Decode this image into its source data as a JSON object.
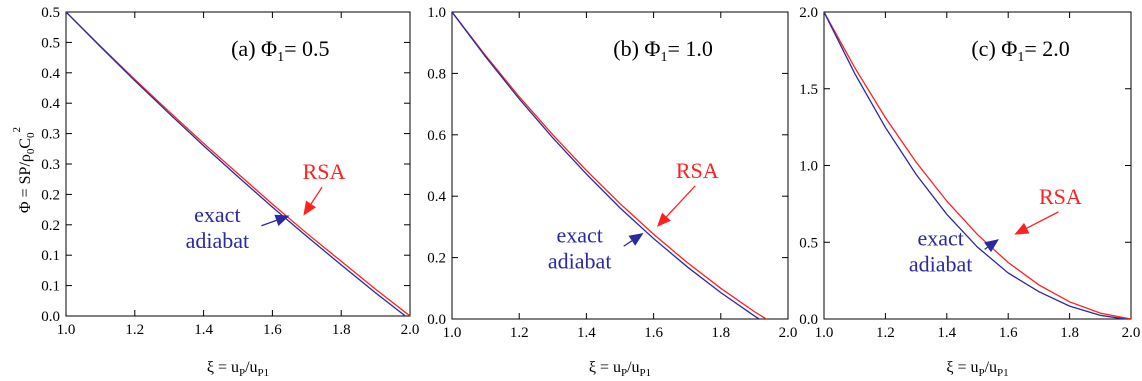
{
  "figure": {
    "ylabel": {
      "base": "Φ = SP/ρ",
      "sub1": "0",
      "mid": "C",
      "sub2": "0",
      "sup": "2"
    },
    "xlabel": {
      "base": "ξ = u",
      "sub1": "P",
      "mid": "/u",
      "sub2": "P1"
    }
  },
  "colors": {
    "rsa": "#ff2020",
    "exact": "#2a2aa0",
    "axis": "#000000"
  },
  "chart_data": [
    {
      "type": "line",
      "panel_label": {
        "prefix": "(a) Φ",
        "sub": "1",
        "suffix": "= 0.5"
      },
      "xlim": [
        1.0,
        2.0
      ],
      "ylim": [
        0.0,
        0.5
      ],
      "x_ticks": [
        "1.0",
        "1.2",
        "1.4",
        "1.6",
        "1.8",
        "2.0"
      ],
      "y_tick_values": [
        0.0,
        0.05,
        0.1,
        0.15,
        0.2,
        0.25,
        0.3,
        0.35,
        0.4,
        0.45,
        0.5
      ],
      "y_tick_labels": [
        "0.0",
        "0.1",
        "0.1",
        "0.2",
        "0.2",
        "0.3",
        "0.3",
        "0.4",
        "0.4",
        "0.5",
        "0.5"
      ],
      "series": [
        {
          "name": "RSA",
          "x": [
            1.0,
            1.1,
            1.2,
            1.3,
            1.4,
            1.5,
            1.6,
            1.7,
            1.8,
            1.9,
            2.0
          ],
          "y": [
            0.5,
            0.444,
            0.389,
            0.336,
            0.284,
            0.234,
            0.184,
            0.136,
            0.09,
            0.044,
            0.0
          ]
        },
        {
          "name": "exact adiabat",
          "x": [
            1.0,
            1.1,
            1.2,
            1.3,
            1.4,
            1.5,
            1.6,
            1.7,
            1.8,
            1.9,
            2.0
          ],
          "y": [
            0.5,
            0.443,
            0.387,
            0.333,
            0.28,
            0.229,
            0.179,
            0.131,
            0.084,
            0.038,
            -0.006
          ]
        }
      ],
      "annotations": [
        {
          "text": "RSA",
          "x": 1.75,
          "y": 0.225,
          "arrow_to": [
            1.69,
            0.165
          ]
        },
        {
          "text": "exact",
          "text2": "adiabat",
          "x": 1.44,
          "y": 0.155,
          "arrow_to": [
            1.65,
            0.165
          ]
        }
      ]
    },
    {
      "type": "line",
      "panel_label": {
        "prefix": "(b) Φ",
        "sub": "1",
        "suffix": "= 1.0"
      },
      "xlim": [
        1.0,
        2.0
      ],
      "ylim": [
        0.0,
        1.0
      ],
      "x_ticks": [
        "1.0",
        "1.2",
        "1.4",
        "1.6",
        "1.8",
        "2.0"
      ],
      "y_tick_values": [
        0.0,
        0.2,
        0.4,
        0.6,
        0.8,
        1.0
      ],
      "y_tick_labels": [
        "0.0",
        "0.2",
        "0.4",
        "0.6",
        "0.8",
        "1.0"
      ],
      "series": [
        {
          "name": "RSA",
          "x": [
            1.0,
            1.1,
            1.2,
            1.3,
            1.4,
            1.5,
            1.6,
            1.7,
            1.8,
            1.9,
            2.0
          ],
          "y": [
            1.0,
            0.858,
            0.724,
            0.6,
            0.484,
            0.376,
            0.276,
            0.184,
            0.1,
            0.024,
            -0.044
          ]
        },
        {
          "name": "exact adiabat",
          "x": [
            1.0,
            1.1,
            1.2,
            1.3,
            1.4,
            1.5,
            1.6,
            1.7,
            1.8,
            1.9,
            2.0
          ],
          "y": [
            1.0,
            0.854,
            0.717,
            0.59,
            0.472,
            0.362,
            0.262,
            0.17,
            0.086,
            0.01,
            -0.058
          ]
        }
      ],
      "annotations": [
        {
          "text": "RSA",
          "x": 1.73,
          "y": 0.46,
          "arrow_to": [
            1.61,
            0.3
          ]
        },
        {
          "text": "exact",
          "text2": "adiabat",
          "x": 1.38,
          "y": 0.25,
          "arrow_to": [
            1.57,
            0.28
          ]
        }
      ]
    },
    {
      "type": "line",
      "panel_label": {
        "prefix": "(c) Φ",
        "sub": "1",
        "suffix": "= 2.0"
      },
      "xlim": [
        1.0,
        2.0
      ],
      "ylim": [
        0.0,
        2.0
      ],
      "x_ticks": [
        "1.0",
        "1.2",
        "1.4",
        "1.6",
        "1.8",
        "2.0"
      ],
      "y_tick_values": [
        0.0,
        0.5,
        1.0,
        1.5,
        2.0
      ],
      "y_tick_labels": [
        "0.0",
        "0.5",
        "1.0",
        "1.5",
        "2.0"
      ],
      "series": [
        {
          "name": "RSA",
          "x": [
            1.0,
            1.1,
            1.2,
            1.3,
            1.4,
            1.5,
            1.6,
            1.7,
            1.8,
            1.9,
            2.0
          ],
          "y": [
            2.0,
            1.638,
            1.312,
            1.022,
            0.768,
            0.55,
            0.368,
            0.222,
            0.112,
            0.038,
            0.0
          ]
        },
        {
          "name": "exact adiabat",
          "x": [
            1.0,
            1.1,
            1.2,
            1.3,
            1.4,
            1.5,
            1.6,
            1.7,
            1.8,
            1.9,
            2.0
          ],
          "y": [
            2.0,
            1.6,
            1.248,
            0.942,
            0.682,
            0.468,
            0.3,
            0.178,
            0.084,
            0.024,
            -0.006
          ]
        }
      ],
      "annotations": [
        {
          "text": "RSA",
          "x": 1.77,
          "y": 0.75,
          "arrow_to": [
            1.62,
            0.55
          ]
        },
        {
          "text": "exact",
          "text2": "adiabat",
          "x": 1.38,
          "y": 0.48,
          "arrow_to": [
            1.57,
            0.52
          ]
        }
      ]
    }
  ]
}
